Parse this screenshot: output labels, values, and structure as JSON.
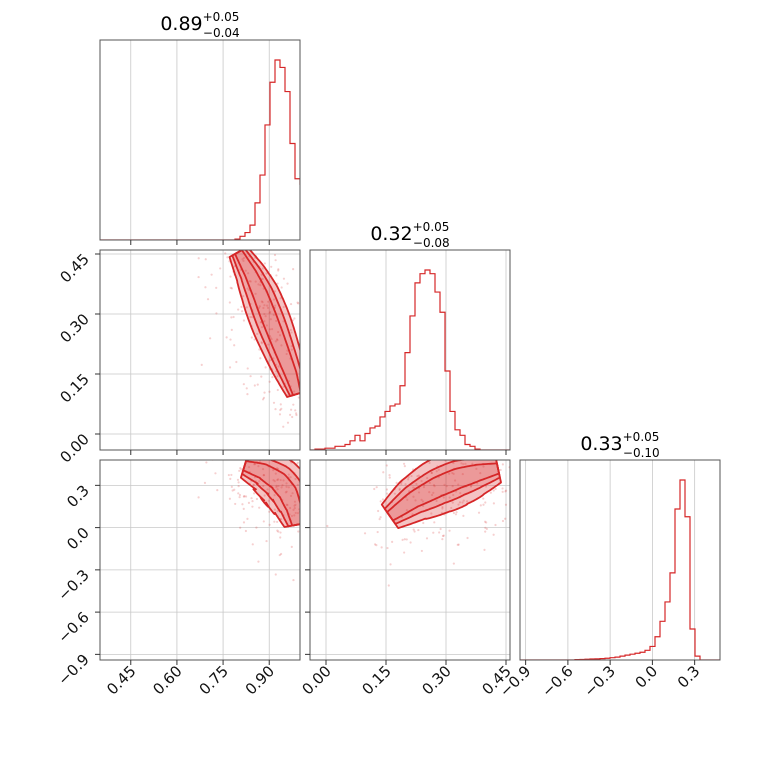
{
  "colors": {
    "series": "#d62728",
    "grid": "#c8c8c8",
    "frame": "#555555"
  },
  "chart_data": {
    "type": "corner",
    "parameters": [
      {
        "title": {
          "median": "0.89",
          "plus": "+0.05",
          "minus": "−0.04"
        },
        "range": [
          0.35,
          1.0
        ],
        "ticks": [
          0.45,
          0.6,
          0.75,
          0.9
        ],
        "tick_labels": [
          "0.45",
          "0.60",
          "0.75",
          "0.90"
        ]
      },
      {
        "title": {
          "median": "0.32",
          "plus": "+0.05",
          "minus": "−0.08"
        },
        "range": [
          -0.04,
          0.46
        ],
        "ticks": [
          0.0,
          0.15,
          0.3,
          0.45
        ],
        "tick_labels": [
          "0.00",
          "0.15",
          "0.30",
          "0.45"
        ]
      },
      {
        "title": {
          "median": "0.33",
          "plus": "+0.05",
          "minus": "−0.10"
        },
        "range": [
          -0.94,
          0.48
        ],
        "ticks": [
          -0.9,
          -0.6,
          -0.3,
          0.0,
          0.3
        ],
        "tick_labels": [
          "−0.9",
          "−0.6",
          "−0.3",
          "0.0",
          "0.3"
        ]
      }
    ],
    "histograms": [
      {
        "param": 0,
        "bin_start": 0.35,
        "bin_width": 0.01625,
        "counts": [
          0,
          0,
          0,
          0,
          0,
          0,
          0,
          0,
          0,
          0,
          0,
          0,
          0,
          0,
          0,
          0,
          0,
          0,
          0,
          0,
          0,
          0,
          0,
          0,
          0,
          0,
          0,
          0.005,
          0.02,
          0.04,
          0.08,
          0.2,
          0.35,
          0.62,
          0.85,
          0.97,
          0.93,
          0.8,
          0.52,
          0.33,
          0.3,
          0.31,
          0.27,
          0.25
        ]
      },
      {
        "param": 1,
        "bin_start": -0.04,
        "bin_width": 0.0125,
        "counts": [
          0,
          0.005,
          0.005,
          0.01,
          0.01,
          0.02,
          0.02,
          0.03,
          0.05,
          0.08,
          0.05,
          0.09,
          0.12,
          0.13,
          0.18,
          0.21,
          0.24,
          0.25,
          0.35,
          0.53,
          0.73,
          0.91,
          0.96,
          0.98,
          0.96,
          0.86,
          0.75,
          0.43,
          0.21,
          0.11,
          0.08,
          0.03,
          0.02,
          0.005,
          0,
          0,
          0,
          0,
          0,
          0
        ]
      },
      {
        "param": 2,
        "bin_start": -0.94,
        "bin_width": 0.0355,
        "counts": [
          0,
          0,
          0,
          0,
          0,
          0,
          0,
          0,
          0,
          0,
          0,
          0.002,
          0.003,
          0.004,
          0.005,
          0.006,
          0.007,
          0.009,
          0.012,
          0.015,
          0.02,
          0.025,
          0.03,
          0.035,
          0.04,
          0.05,
          0.07,
          0.12,
          0.2,
          0.3,
          0.45,
          0.78,
          0.93,
          0.74,
          0.16,
          0.02,
          0,
          0,
          0,
          0
        ]
      }
    ],
    "contour_panels": [
      {
        "x_param": 0,
        "y_param": 1,
        "ridge": [
          [
            0.8,
            0.455
          ],
          [
            0.84,
            0.4
          ],
          [
            0.87,
            0.35
          ],
          [
            0.9,
            0.29
          ],
          [
            0.93,
            0.23
          ],
          [
            0.97,
            0.15
          ],
          [
            0.99,
            0.1
          ]
        ],
        "widths": [
          0.025,
          0.045,
          0.065
        ]
      },
      {
        "x_param": 0,
        "y_param": 2,
        "ridge": [
          [
            0.82,
            0.44
          ],
          [
            0.88,
            0.4
          ],
          [
            0.93,
            0.33
          ],
          [
            0.96,
            0.25
          ],
          [
            0.98,
            0.14
          ],
          [
            0.99,
            0.02
          ]
        ],
        "widths": [
          0.03,
          0.055,
          0.08
        ]
      },
      {
        "x_param": 1,
        "y_param": 2,
        "ridge": [
          [
            0.16,
            0.08
          ],
          [
            0.22,
            0.2
          ],
          [
            0.28,
            0.29
          ],
          [
            0.33,
            0.35
          ],
          [
            0.38,
            0.39
          ],
          [
            0.43,
            0.42
          ]
        ],
        "widths": [
          0.025,
          0.045,
          0.07
        ]
      }
    ],
    "grid": true,
    "legend": "none"
  }
}
